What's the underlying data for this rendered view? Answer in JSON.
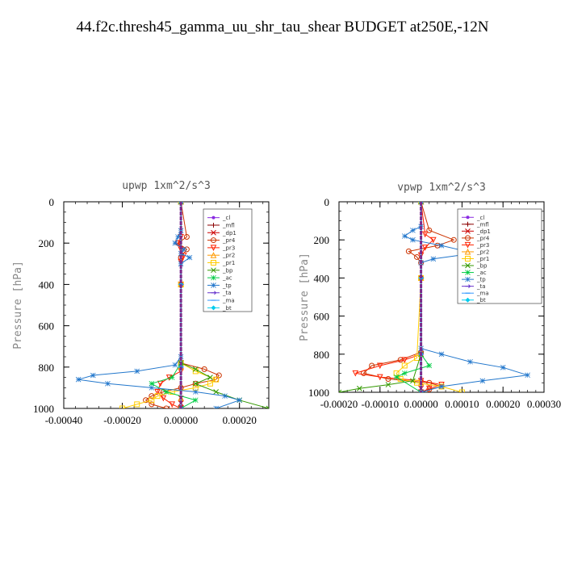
{
  "figure_title": "44.f2c.thresh45_gamma_uu_shr_tau_shear  BUDGET at250E,-12N",
  "chart_data": [
    {
      "type": "line",
      "title": "upwp   1xm^2/s^3",
      "ylabel": "Pressure [hPa]",
      "xlabel": "",
      "xlim": [
        -0.0004,
        0.0003
      ],
      "ylim": [
        1000,
        0
      ],
      "xticks": [
        "-0.00040",
        "-0.00020",
        "0.00000",
        "0.00020"
      ],
      "xtick_values": [
        -0.0004,
        -0.0002,
        0.0,
        0.0002
      ],
      "yticks": [
        "0",
        "200",
        "400",
        "600",
        "800",
        "1000"
      ],
      "ytick_values": [
        0,
        200,
        400,
        600,
        800,
        1000
      ],
      "legend_position": "top-right",
      "series": [
        {
          "name": "_cl",
          "color": "#8a2be2",
          "marker": "dot",
          "x": [
            0,
            0,
            0,
            0
          ],
          "y": [
            0,
            400,
            800,
            1000
          ]
        },
        {
          "name": "_mfl",
          "color": "#8b0000",
          "marker": "plus",
          "x": [
            0,
            0,
            0,
            0
          ],
          "y": [
            0,
            400,
            800,
            1000
          ]
        },
        {
          "name": "_dp1",
          "color": "#cc0000",
          "marker": "cross",
          "x": [
            0,
            0,
            0,
            0,
            0,
            0,
            0,
            0
          ],
          "y": [
            0,
            400,
            800,
            950,
            975,
            1000,
            1000,
            1000
          ]
        },
        {
          "name": "_pr4",
          "color": "#cc3300",
          "marker": "circle",
          "x": [
            0,
            2e-05,
            -1e-05,
            2e-05,
            0,
            0,
            8e-05,
            0.00013,
            0.00012,
            5e-05,
            0,
            -6e-05,
            -0.0001,
            -0.00012,
            -0.0001,
            -5e-05,
            0
          ],
          "y": [
            0,
            170,
            200,
            230,
            270,
            780,
            810,
            840,
            860,
            880,
            900,
            920,
            940,
            960,
            980,
            1000,
            1000
          ]
        },
        {
          "name": "_pr3",
          "color": "#ff2200",
          "marker": "triangle-down",
          "x": [
            0,
            0,
            -1e-05,
            0,
            1e-05,
            0,
            0,
            0,
            0,
            -4e-05,
            -7e-05,
            -8e-05,
            -6e-05,
            -3e-05,
            0
          ],
          "y": [
            0,
            170,
            200,
            230,
            260,
            290,
            400,
            780,
            820,
            850,
            880,
            920,
            950,
            980,
            1000
          ]
        },
        {
          "name": "_pr2",
          "color": "#ff9900",
          "marker": "triangle",
          "x": [
            0,
            0,
            0,
            0,
            0
          ],
          "y": [
            0,
            400,
            800,
            950,
            1000
          ]
        },
        {
          "name": "_pr1",
          "color": "#ffcc00",
          "marker": "square",
          "x": [
            0,
            0,
            0,
            5e-05,
            0.00012,
            0.0001,
            5e-05,
            -3e-05,
            -8e-05,
            -0.0001,
            -0.00015,
            -0.0002
          ],
          "y": [
            0,
            400,
            780,
            820,
            860,
            880,
            900,
            920,
            940,
            960,
            980,
            1000
          ]
        },
        {
          "name": "_bp",
          "color": "#339900",
          "marker": "cross",
          "x": [
            0,
            0,
            5e-05,
            0.0001,
            5e-05,
            0.00012,
            0.0002,
            0.0003
          ],
          "y": [
            0,
            780,
            810,
            850,
            880,
            920,
            960,
            1000
          ]
        },
        {
          "name": "_ac",
          "color": "#00cc44",
          "marker": "asterisk",
          "x": [
            0,
            0,
            -3e-05,
            -0.0001,
            -5e-05,
            5e-05,
            0
          ],
          "y": [
            0,
            780,
            850,
            880,
            920,
            960,
            1000
          ]
        },
        {
          "name": "_tp",
          "color": "#2277cc",
          "marker": "asterisk",
          "x": [
            0,
            0,
            -1e-05,
            -2e-05,
            1e-05,
            0,
            3e-05,
            0,
            0,
            -2e-05,
            -0.00015,
            -0.0003,
            -0.00035,
            -0.00025,
            -0.0001,
            5e-05,
            0.00015,
            0.0002,
            0.00012
          ],
          "y": [
            0,
            140,
            170,
            200,
            230,
            250,
            270,
            300,
            750,
            790,
            820,
            840,
            860,
            880,
            900,
            920,
            940,
            960,
            1000
          ]
        },
        {
          "name": "_ta",
          "color": "#6633cc",
          "marker": "arrow",
          "x": [
            0,
            0,
            0,
            0
          ],
          "y": [
            0,
            400,
            800,
            1000
          ]
        },
        {
          "name": "_ma",
          "color": "#3399ff",
          "marker": "dash",
          "x": [
            0,
            0,
            0,
            0
          ],
          "y": [
            0,
            400,
            800,
            1000
          ]
        },
        {
          "name": "_bt",
          "color": "#00ccee",
          "marker": "diamond",
          "x": [
            0,
            0,
            0,
            0
          ],
          "y": [
            0,
            400,
            800,
            1000
          ]
        }
      ]
    },
    {
      "type": "line",
      "title": "vpwp   1xm^2/s^3",
      "ylabel": "Pressure [hPa]",
      "xlabel": "",
      "xlim": [
        -0.0002,
        0.0003
      ],
      "ylim": [
        1000,
        0
      ],
      "xticks": [
        "-0.00020",
        "-0.00010",
        "0.00000",
        "0.00010",
        "0.00020",
        "0.00030"
      ],
      "xtick_values": [
        -0.0002,
        -0.0001,
        0.0,
        0.0001,
        0.0002,
        0.0003
      ],
      "yticks": [
        "0",
        "200",
        "400",
        "600",
        "800",
        "1000"
      ],
      "ytick_values": [
        0,
        200,
        400,
        600,
        800,
        1000
      ],
      "legend_position": "top-right",
      "series": [
        {
          "name": "_cl",
          "color": "#8a2be2",
          "marker": "dot",
          "x": [
            0,
            0,
            0,
            0
          ],
          "y": [
            0,
            400,
            800,
            1000
          ]
        },
        {
          "name": "_mfl",
          "color": "#8b0000",
          "marker": "plus",
          "x": [
            0,
            0,
            0,
            0
          ],
          "y": [
            0,
            400,
            800,
            1000
          ]
        },
        {
          "name": "_dp1",
          "color": "#cc0000",
          "marker": "cross",
          "x": [
            0,
            0,
            0,
            0,
            0,
            0
          ],
          "y": [
            0,
            400,
            800,
            950,
            980,
            1000
          ]
        },
        {
          "name": "_pr4",
          "color": "#cc3300",
          "marker": "circle",
          "x": [
            0,
            2e-05,
            8e-05,
            4e-05,
            -3e-05,
            -1e-05,
            0,
            0,
            -5e-05,
            -0.00012,
            -0.00014,
            -8e-05,
            2e-05,
            5e-05,
            2e-05,
            0
          ],
          "y": [
            0,
            150,
            200,
            230,
            260,
            290,
            320,
            790,
            830,
            860,
            900,
            930,
            950,
            970,
            985,
            1000
          ]
        },
        {
          "name": "_pr3",
          "color": "#ff2200",
          "marker": "triangle-down",
          "x": [
            0,
            1e-05,
            3e-05,
            1e-05,
            0,
            0,
            -4e-05,
            -0.0001,
            -0.00016,
            -0.0001,
            0,
            5e-05,
            2e-05,
            0
          ],
          "y": [
            0,
            170,
            200,
            240,
            280,
            800,
            830,
            860,
            900,
            920,
            940,
            960,
            980,
            1000
          ]
        },
        {
          "name": "_pr2",
          "color": "#ff9900",
          "marker": "triangle",
          "x": [
            0,
            0,
            0,
            0,
            0
          ],
          "y": [
            0,
            400,
            800,
            950,
            1000
          ]
        },
        {
          "name": "_pr1",
          "color": "#ffcc00",
          "marker": "square",
          "x": [
            0,
            0,
            -1e-05,
            -4e-05,
            -6e-05,
            -5e-05,
            -1e-05,
            5e-05,
            0.0001
          ],
          "y": [
            0,
            400,
            820,
            860,
            900,
            930,
            950,
            970,
            1000
          ]
        },
        {
          "name": "_bp",
          "color": "#339900",
          "marker": "cross",
          "x": [
            0,
            0,
            -2e-05,
            -8e-05,
            -0.00015,
            -0.0002
          ],
          "y": [
            0,
            800,
            940,
            960,
            980,
            1000
          ]
        },
        {
          "name": "_ac",
          "color": "#00cc44",
          "marker": "asterisk",
          "x": [
            0,
            0,
            2e-05,
            -4e-05,
            -6e-05,
            0
          ],
          "y": [
            0,
            800,
            860,
            900,
            920,
            1000
          ]
        },
        {
          "name": "_tp",
          "color": "#2277cc",
          "marker": "asterisk",
          "x": [
            0,
            0,
            -2e-05,
            -4e-05,
            -2e-05,
            5e-05,
            0.00013,
            3e-05,
            0,
            0,
            5e-05,
            0.00012,
            0.0002,
            0.00026,
            0.00015,
            5e-05,
            0
          ],
          "y": [
            0,
            130,
            150,
            180,
            200,
            230,
            270,
            300,
            320,
            770,
            800,
            840,
            870,
            910,
            940,
            970,
            1000
          ]
        },
        {
          "name": "_ta",
          "color": "#6633cc",
          "marker": "arrow",
          "x": [
            0,
            0,
            0,
            0
          ],
          "y": [
            0,
            400,
            800,
            1000
          ]
        },
        {
          "name": "_ma",
          "color": "#3399ff",
          "marker": "dash",
          "x": [
            0,
            0,
            0,
            0
          ],
          "y": [
            0,
            400,
            800,
            1000
          ]
        },
        {
          "name": "_bt",
          "color": "#00ccee",
          "marker": "diamond",
          "x": [
            0,
            0,
            0,
            0
          ],
          "y": [
            0,
            400,
            800,
            1000
          ]
        }
      ]
    }
  ]
}
